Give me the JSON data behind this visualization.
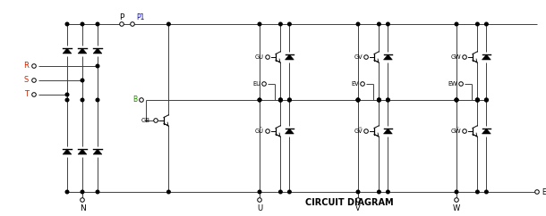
{
  "title": "CIRCUIT DIAGRAM",
  "bg": "#ffffff",
  "lc": "#404040",
  "fig_w": 6.1,
  "fig_h": 2.42,
  "dpi": 100,
  "labels": {
    "P": "P",
    "N": "N",
    "P1": "P1",
    "E": "E",
    "R": "R",
    "S": "S",
    "T": "T",
    "B": "B",
    "GB": "GB",
    "GU": "GU",
    "EU": "EU",
    "GUb": "GŪ",
    "GV": "GV",
    "EV": "EV",
    "GVb": "GṼ",
    "GW": "GW",
    "EW": "EW",
    "GWb": "GẄ",
    "U": "U",
    "V": "V",
    "W": "W"
  },
  "colors": {
    "R_label": "#cc2200",
    "S_label": "#cc2200",
    "T_label": "#cc2200",
    "B_label": "#228800",
    "P1_label": "#0000cc",
    "default": "#000000"
  }
}
